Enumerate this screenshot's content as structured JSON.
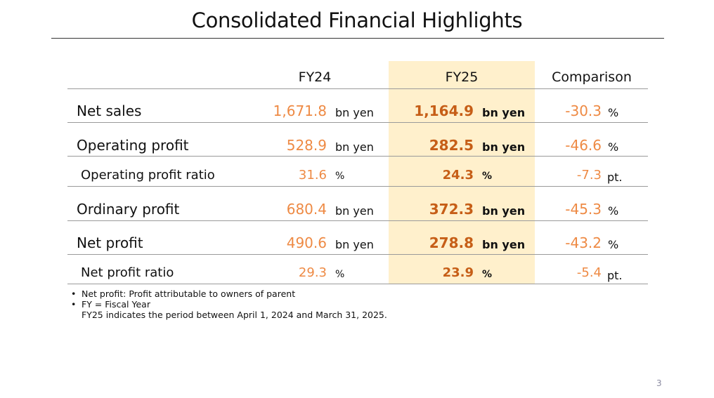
{
  "page": {
    "title": "Consolidated Financial Highlights",
    "page_number": "3"
  },
  "table": {
    "headers": {
      "fy24": "FY24",
      "fy25": "FY25",
      "comparison": "Comparison"
    },
    "rows": [
      {
        "label": "Net sales",
        "fy24": "1,671.8",
        "fy24_unit": "bn yen",
        "fy25": "1,164.9",
        "fy25_unit": "bn yen",
        "comparison": "-30.3",
        "comparison_unit": "%"
      },
      {
        "label": "Operating profit",
        "fy24": "528.9",
        "fy24_unit": "bn yen",
        "fy25": "282.5",
        "fy25_unit": "bn yen",
        "comparison": "-46.6",
        "comparison_unit": "%"
      },
      {
        "label": "Operating profit ratio",
        "fy24": "31.6",
        "fy24_unit": "%",
        "fy25": "24.3",
        "fy25_unit": "%",
        "comparison": "-7.3",
        "comparison_unit": "pt."
      },
      {
        "label": "Ordinary profit",
        "fy24": "680.4",
        "fy24_unit": "bn yen",
        "fy25": "372.3",
        "fy25_unit": "bn yen",
        "comparison": "-45.3",
        "comparison_unit": "%"
      },
      {
        "label": "Net profit",
        "fy24": "490.6",
        "fy24_unit": "bn yen",
        "fy25": "278.8",
        "fy25_unit": "bn yen",
        "comparison": "-43.2",
        "comparison_unit": "%"
      },
      {
        "label": "Net profit ratio",
        "fy24": "29.3",
        "fy24_unit": "%",
        "fy25": "23.9",
        "fy25_unit": "%",
        "comparison": "-5.4",
        "comparison_unit": "pt."
      }
    ]
  },
  "notes": {
    "bullet": "•",
    "items": [
      "Net profit: Profit attributable to owners of parent",
      "FY = Fiscal Year"
    ],
    "continuation": "FY25 indicates the period between April 1, 2024 and March 31, 2025."
  },
  "colors": {
    "fy24_value": "#ee8a44",
    "fy25_value": "#c65e17",
    "comparison_value": "#ee8a44",
    "highlight_column": "#fff0cc"
  }
}
